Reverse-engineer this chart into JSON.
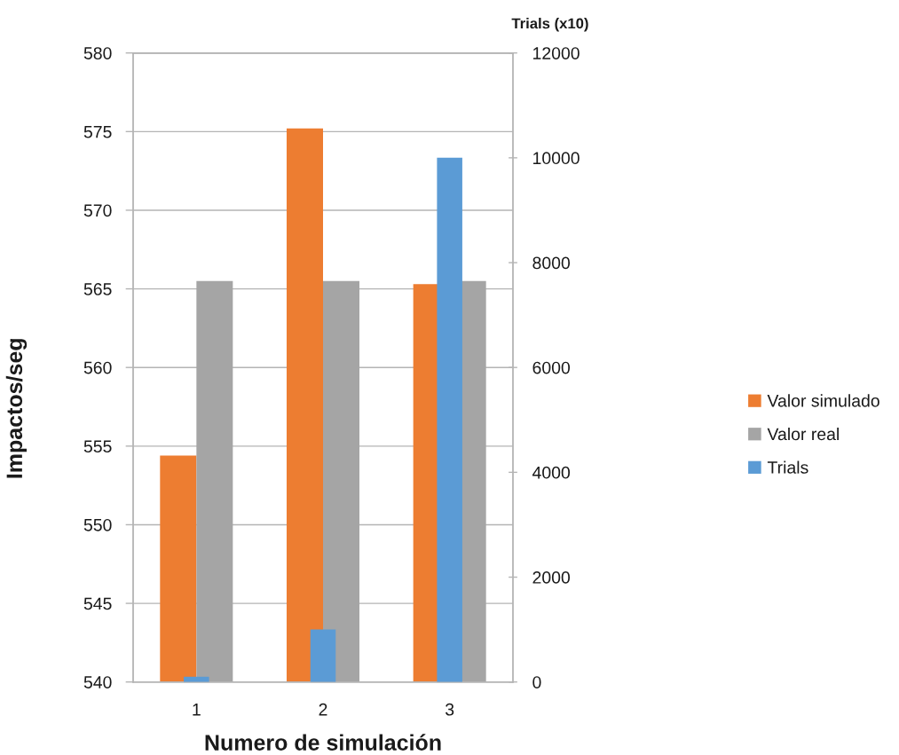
{
  "chart_data": {
    "type": "bar",
    "xlabel": "Numero de simulación",
    "ylabel": "Impactos/seg",
    "y2label": "Trials (x10)",
    "categories": [
      "1",
      "2",
      "3"
    ],
    "series": [
      {
        "name": "Valor simulado",
        "color": "#ed7d31",
        "values": [
          554.4,
          575.2,
          565.3
        ]
      },
      {
        "name": "Valor real",
        "color": "#a5a5a5",
        "values": [
          565.5,
          565.5,
          565.5
        ]
      },
      {
        "name": "Trials",
        "color": "#5b9bd5",
        "values": [
          100,
          1000,
          10000
        ],
        "axis": "y2"
      }
    ],
    "ylim": [
      540,
      580
    ],
    "yticks": [
      540,
      545,
      550,
      555,
      560,
      565,
      570,
      575,
      580
    ],
    "y2lim": [
      0,
      12000
    ],
    "y2ticks": [
      0,
      2000,
      4000,
      6000,
      8000,
      10000,
      12000
    ],
    "grid": "y",
    "legend": "right"
  }
}
